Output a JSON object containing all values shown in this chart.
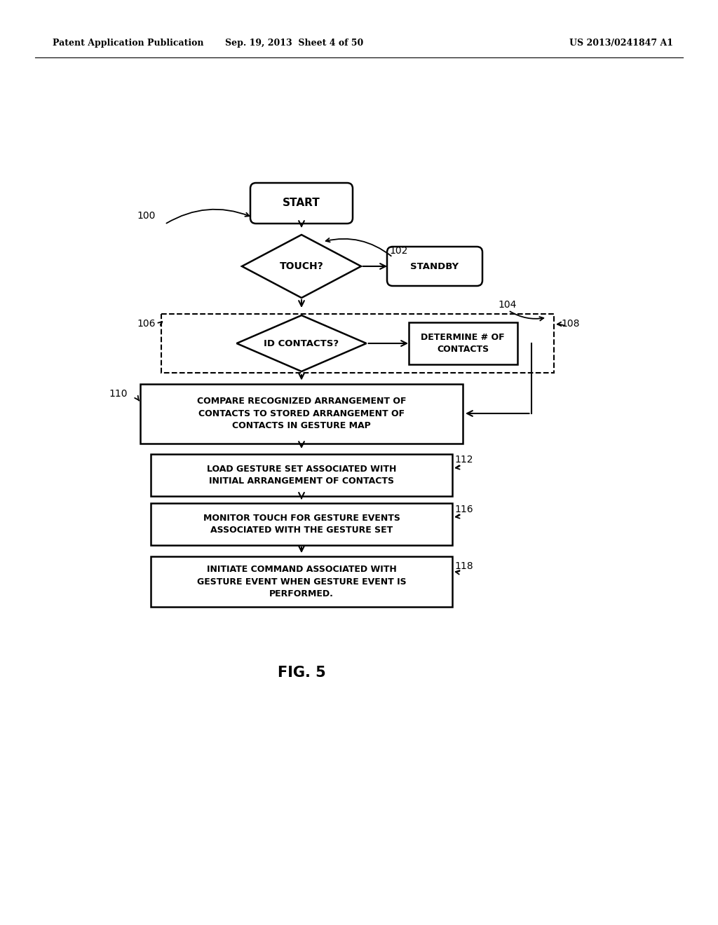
{
  "background_color": "#ffffff",
  "header_left": "Patent Application Publication",
  "header_center": "Sep. 19, 2013  Sheet 4 of 50",
  "header_right": "US 2013/0241847 A1",
  "figure_label": "FIG. 5"
}
